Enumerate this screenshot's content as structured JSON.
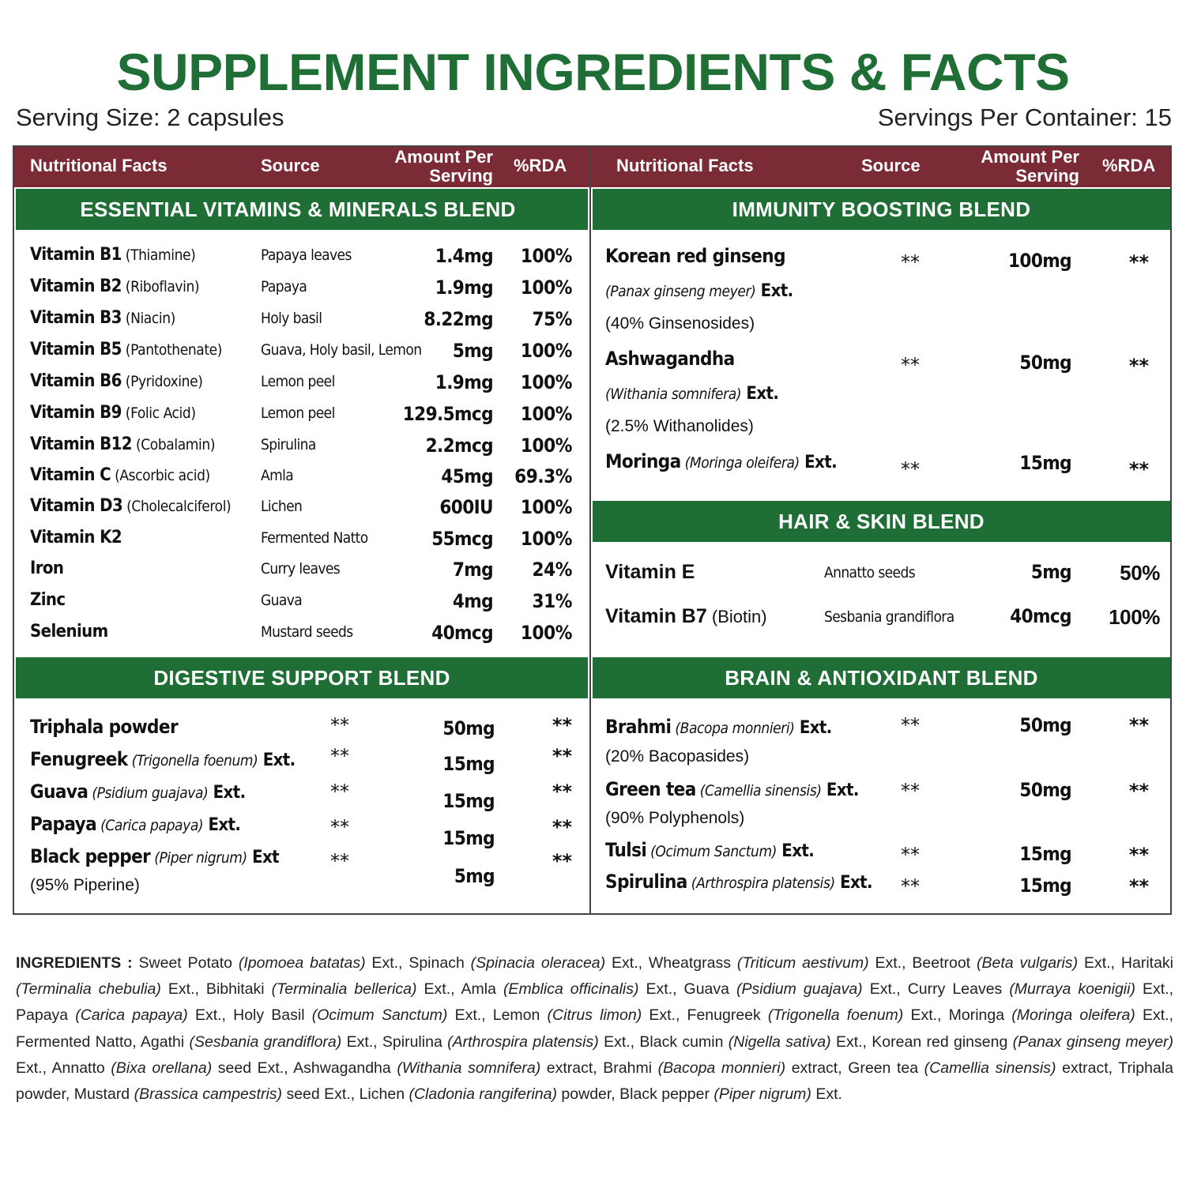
{
  "title": "SUPPLEMENT INGREDIENTS & FACTS",
  "serving_size": "Serving Size: 2 capsules",
  "servings_per_container": "Servings Per Container: 15",
  "table_header": {
    "nutritional_facts": "Nutritional Facts",
    "source": "Source",
    "amount_line1": "Amount Per",
    "amount_line2": "Serving",
    "rda": "%RDA"
  },
  "vitamins_blend": {
    "title": "ESSENTIAL VITAMINS & MINERALS BLEND",
    "rows": [
      {
        "name": "Vitamin B1",
        "sub": " (Thiamine)",
        "source": "Papaya leaves",
        "amount": "1.4mg",
        "rda": "100%"
      },
      {
        "name": "Vitamin B2",
        "sub": " (Riboflavin)",
        "source": "Papaya",
        "amount": "1.9mg",
        "rda": "100%"
      },
      {
        "name": "Vitamin B3",
        "sub": " (Niacin)",
        "source": "Holy basil",
        "amount": "8.22mg",
        "rda": "75%"
      },
      {
        "name": "Vitamin B5",
        "sub": " (Pantothenate)",
        "source": "Guava, Holy basil, Lemon",
        "amount": "5mg",
        "rda": "100%"
      },
      {
        "name": "Vitamin B6",
        "sub": " (Pyridoxine)",
        "source": "Lemon peel",
        "amount": "1.9mg",
        "rda": "100%"
      },
      {
        "name": "Vitamin B9",
        "sub": " (Folic Acid)",
        "source": "Lemon peel",
        "amount": "129.5mcg",
        "rda": "100%"
      },
      {
        "name": "Vitamin B12",
        "sub": " (Cobalamin)",
        "source": "Spirulina",
        "amount": "2.2mcg",
        "rda": "100%"
      },
      {
        "name": "Vitamin C",
        "sub": " (Ascorbic acid)",
        "source": "Amla",
        "amount": "45mg",
        "rda": "69.3%"
      },
      {
        "name": "Vitamin D3",
        "sub": " (Cholecalciferol)",
        "source": "Lichen",
        "amount": "600IU",
        "rda": "100%"
      },
      {
        "name": "Vitamin K2",
        "sub": "",
        "source": "Fermented Natto",
        "amount": "55mcg",
        "rda": "100%"
      },
      {
        "name": "Iron",
        "sub": "",
        "source": "Curry leaves",
        "amount": "7mg",
        "rda": "24%"
      },
      {
        "name": "Zinc",
        "sub": "",
        "source": "Guava",
        "amount": "4mg",
        "rda": "31%"
      },
      {
        "name": "Selenium",
        "sub": "",
        "source": "Mustard seeds",
        "amount": "40mcg",
        "rda": "100%"
      }
    ]
  },
  "digestive_blend": {
    "title": "DIGESTIVE SUPPORT BLEND",
    "rows": [
      {
        "name": "Triphala powder",
        "latin": "",
        "ext": "",
        "note": "",
        "source": "**",
        "amount": "50mg",
        "rda": "**"
      },
      {
        "name": "Fenugreek",
        "latin": " (Trigonella foenum)",
        "ext": " Ext.",
        "note": "",
        "source": "**",
        "amount": "15mg",
        "rda": "**"
      },
      {
        "name": "Guava",
        "latin": " (Psidium guajava)",
        "ext": " Ext.",
        "note": "",
        "source": "**",
        "amount": "15mg",
        "rda": "**"
      },
      {
        "name": "Papaya",
        "latin": " (Carica papaya)",
        "ext": " Ext.",
        "note": "",
        "source": "**",
        "amount": "15mg",
        "rda": "**"
      },
      {
        "name": "Black pepper",
        "latin": " (Piper nigrum)",
        "ext": " Ext",
        "note": "(95% Piperine)",
        "source": "**",
        "amount": "5mg",
        "rda": "**"
      }
    ]
  },
  "immunity_blend": {
    "title": "IMMUNITY BOOSTING BLEND",
    "rows": [
      {
        "name": "Korean red ginseng",
        "latin": "(Panax ginseng meyer)",
        "ext": " Ext.",
        "note": "(40% Ginsenosides)",
        "source": "**",
        "amount": "100mg",
        "rda": "**"
      },
      {
        "name": "Ashwagandha",
        "latin": "(Withania somnifera)",
        "ext": " Ext.",
        "note": "(2.5% Withanolides)",
        "source": "**",
        "amount": "50mg",
        "rda": "**"
      },
      {
        "name": "Moringa",
        "latin": " (Moringa oleifera)",
        "ext": " Ext.",
        "note": "",
        "source": "**",
        "amount": "15mg",
        "rda": "**"
      }
    ]
  },
  "hair_skin_blend": {
    "title": "HAIR & SKIN BLEND",
    "rows": [
      {
        "name": "Vitamin E",
        "sub": "",
        "source": "Annatto seeds",
        "amount": "5mg",
        "rda": "50%"
      },
      {
        "name": "Vitamin B7",
        "sub": " (Biotin)",
        "source": "Sesbania grandiflora",
        "amount": "40mcg",
        "rda": "100%"
      }
    ]
  },
  "brain_blend": {
    "title": "BRAIN & ANTIOXIDANT BLEND",
    "rows": [
      {
        "name": "Brahmi",
        "latin": " (Bacopa monnieri)",
        "ext": " Ext.",
        "note": "(20% Bacopasides)",
        "source": "**",
        "amount": "50mg",
        "rda": "**"
      },
      {
        "name": "Green tea",
        "latin": " (Camellia sinensis)",
        "ext": " Ext.",
        "note": "(90% Polyphenols)",
        "source": "**",
        "amount": "50mg",
        "rda": "**"
      },
      {
        "name": "Tulsi",
        "latin": " (Ocimum Sanctum)",
        "ext": " Ext.",
        "note": "",
        "source": "**",
        "amount": "15mg",
        "rda": "**"
      },
      {
        "name": "Spirulina",
        "latin": " (Arthrospira platensis)",
        "ext": " Ext.",
        "note": "",
        "source": "**",
        "amount": "15mg",
        "rda": "**"
      }
    ]
  },
  "ingredients": {
    "label": "INGREDIENTS :",
    "parts": [
      {
        "t": " Sweet Potato "
      },
      {
        "i": "(Ipomoea batatas)"
      },
      {
        "t": " Ext., Spinach "
      },
      {
        "i": "(Spinacia oleracea)"
      },
      {
        "t": " Ext., Wheatgrass "
      },
      {
        "i": "(Triticum aestivum)"
      },
      {
        "t": " Ext., Beetroot "
      },
      {
        "i": "(Beta vulgaris)"
      },
      {
        "t": " Ext., Haritaki "
      },
      {
        "i": "(Terminalia chebulia)"
      },
      {
        "t": " Ext., Bibhitaki "
      },
      {
        "i": "(Terminalia bellerica)"
      },
      {
        "t": " Ext., Amla "
      },
      {
        "i": "(Emblica officinalis)"
      },
      {
        "t": " Ext., Guava "
      },
      {
        "i": "(Psidium guajava)"
      },
      {
        "t": " Ext., Curry Leaves "
      },
      {
        "i": "(Murraya koenigii)"
      },
      {
        "t": " Ext., Papaya "
      },
      {
        "i": "(Carica papaya)"
      },
      {
        "t": " Ext., Holy Basil "
      },
      {
        "i": "(Ocimum Sanctum)"
      },
      {
        "t": " Ext., Lemon "
      },
      {
        "i": "(Citrus limon)"
      },
      {
        "t": " Ext., Fenugreek "
      },
      {
        "i": "(Trigonella foenum)"
      },
      {
        "t": " Ext., Moringa "
      },
      {
        "i": "(Moringa oleifera)"
      },
      {
        "t": " Ext., Fermented Natto, Agathi "
      },
      {
        "i": "(Sesbania grandiflora)"
      },
      {
        "t": " Ext., Spirulina "
      },
      {
        "i": "(Arthrospira platensis)"
      },
      {
        "t": " Ext., Black cumin "
      },
      {
        "i": "(Nigella sativa)"
      },
      {
        "t": " Ext., Korean red ginseng "
      },
      {
        "i": "(Panax ginseng meyer)"
      },
      {
        "t": " Ext., Annatto "
      },
      {
        "i": "(Bixa orellana)"
      },
      {
        "t": " seed Ext., Ashwagandha "
      },
      {
        "i": "(Withania somnifera)"
      },
      {
        "t": " extract, Brahmi "
      },
      {
        "i": "(Bacopa monnieri)"
      },
      {
        "t": " extract, Green tea "
      },
      {
        "i": "(Camellia sinensis)"
      },
      {
        "t": " extract, Triphala powder, Mustard "
      },
      {
        "i": "(Brassica campestris)"
      },
      {
        "t": " seed Ext., Lichen "
      },
      {
        "i": "(Cladonia rangiferina)"
      },
      {
        "t": " powder, Black pepper "
      },
      {
        "i": "(Piper nigrum)"
      },
      {
        "t": " Ext."
      }
    ]
  }
}
